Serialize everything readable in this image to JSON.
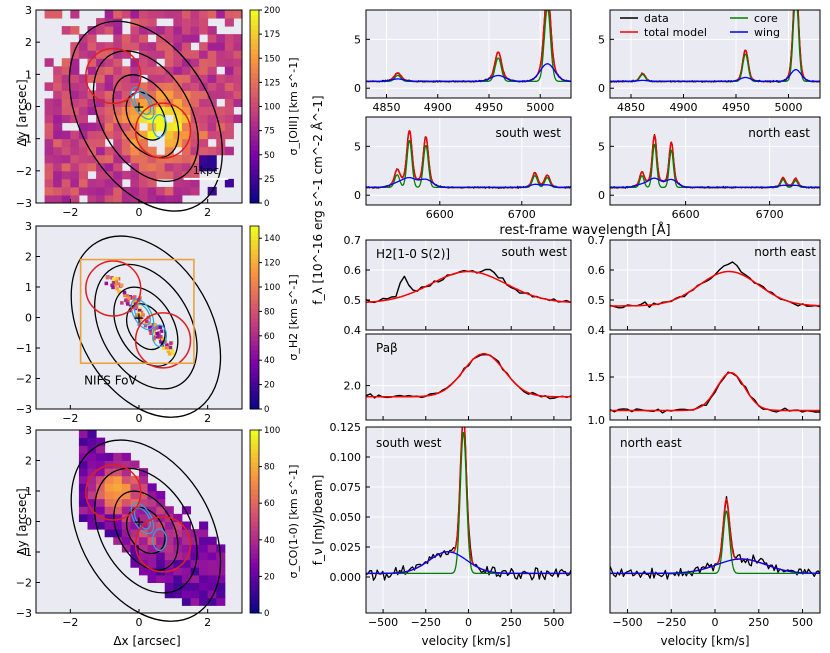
{
  "figure": {
    "map_xlabel": "Δx [arcsec]",
    "map_ylabel": "Δy [arcsec]",
    "spec_xlabel": "rest-frame wavelength [Å]",
    "flux_ylabel": "f_λ [10^-16 erg s^-1 cm^-2 Å^-1]",
    "co_ylabel": "f_ν [mJy/beam]",
    "vel_xlabel": "velocity [km/s]"
  },
  "colors": {
    "data": "#000000",
    "total_model": "#ff0000",
    "core": "#008000",
    "wing": "#0000ff",
    "panel_bg": "#eaeaf2",
    "fov_box": "#e8a33c",
    "contour": "#000000",
    "region_circle": "#e0201e",
    "cyan_contour": "#2aa6e0"
  },
  "legend": [
    {
      "label": "data",
      "color": "#000000"
    },
    {
      "label": "total model",
      "color": "#ff0000"
    },
    {
      "label": "core",
      "color": "#008000"
    },
    {
      "label": "wing",
      "color": "#0000ff"
    }
  ],
  "chart_data": [
    {
      "type": "heatmap",
      "panel": "map_oiii",
      "colorbar_label": "σ_[OIII] [km s^-1]",
      "colorbar_ticks": [
        0,
        25,
        50,
        75,
        100,
        125,
        150,
        175,
        200
      ],
      "clim": [
        0,
        200
      ],
      "colormap": "plasma",
      "xlim": [
        -3,
        3
      ],
      "ylim": [
        -3,
        3
      ],
      "xticks": [
        -2,
        0,
        2
      ],
      "yticks": [
        -3,
        -2,
        -1,
        0,
        1,
        2,
        3
      ],
      "scalebar_label": "1kpc"
    },
    {
      "type": "heatmap",
      "panel": "map_h2",
      "colorbar_label": "σ_H2 [km s^-1]",
      "colorbar_ticks": [
        0,
        20,
        40,
        60,
        80,
        100,
        120,
        140
      ],
      "clim": [
        0,
        150
      ],
      "colormap": "plasma",
      "xlim": [
        -3,
        3
      ],
      "ylim": [
        -3,
        3
      ],
      "xticks": [
        -2,
        0,
        2
      ],
      "yticks": [
        -3,
        -2,
        -1,
        0,
        1,
        2,
        3
      ],
      "fov_label": "NIFS FoV"
    },
    {
      "type": "heatmap",
      "panel": "map_co",
      "colorbar_label": "σ_CO(1-0) [km s^-1]",
      "colorbar_ticks": [
        0,
        20,
        40,
        60,
        80,
        100
      ],
      "clim": [
        0,
        100
      ],
      "colormap": "plasma",
      "xlim": [
        -3,
        3
      ],
      "ylim": [
        -3,
        3
      ],
      "xticks": [
        -2,
        0,
        2
      ],
      "yticks": [
        -3,
        -2,
        -1,
        0,
        1,
        2,
        3
      ]
    },
    {
      "type": "line",
      "panel": "oiii_sw",
      "xlim": [
        4830,
        5030
      ],
      "ylim": [
        -1,
        8
      ],
      "xticks": [
        4850,
        4900,
        4950,
        5000
      ],
      "yticks": [
        0,
        5
      ],
      "continuum": 0.7,
      "lines": [
        {
          "center": 4861,
          "core_amp": 0.6,
          "core_sigma": 3,
          "wing_amp": 0.25,
          "wing_sigma": 6
        },
        {
          "center": 4959,
          "core_amp": 2.4,
          "core_sigma": 3,
          "wing_amp": 0.6,
          "wing_sigma": 7
        },
        {
          "center": 5007,
          "core_amp": 7.5,
          "core_sigma": 3,
          "wing_amp": 1.8,
          "wing_sigma": 7
        }
      ]
    },
    {
      "type": "line",
      "panel": "oiii_ne",
      "xlim": [
        4830,
        5030
      ],
      "ylim": [
        -1,
        8
      ],
      "xticks": [
        4850,
        4900,
        4950,
        5000
      ],
      "yticks": [
        0,
        5
      ],
      "continuum": 0.7,
      "lines": [
        {
          "center": 4861,
          "core_amp": 0.7,
          "core_sigma": 2.5,
          "wing_amp": 0.1,
          "wing_sigma": 5
        },
        {
          "center": 4959,
          "core_amp": 2.8,
          "core_sigma": 2.5,
          "wing_amp": 0.4,
          "wing_sigma": 5
        },
        {
          "center": 5007,
          "core_amp": 8.8,
          "core_sigma": 2.5,
          "wing_amp": 1.2,
          "wing_sigma": 5
        }
      ]
    },
    {
      "type": "line",
      "panel": "ha_sw",
      "label": "south west",
      "xlim": [
        6510,
        6760
      ],
      "ylim": [
        -1,
        8
      ],
      "xticks": [
        6600,
        6700
      ],
      "yticks": [
        0,
        5
      ],
      "continuum": 0.8,
      "lines": [
        {
          "center": 6548,
          "core_amp": 1.3,
          "core_sigma": 3,
          "wing_amp": 0.4,
          "wing_sigma": 8
        },
        {
          "center": 6563,
          "core_amp": 4.8,
          "core_sigma": 3,
          "wing_amp": 0.9,
          "wing_sigma": 8
        },
        {
          "center": 6583,
          "core_amp": 4.3,
          "core_sigma": 3,
          "wing_amp": 0.8,
          "wing_sigma": 8
        },
        {
          "center": 6716,
          "core_amp": 1.2,
          "core_sigma": 3,
          "wing_amp": 0.3,
          "wing_sigma": 6
        },
        {
          "center": 6731,
          "core_amp": 1.0,
          "core_sigma": 3,
          "wing_amp": 0.25,
          "wing_sigma": 6
        }
      ]
    },
    {
      "type": "line",
      "panel": "ha_ne",
      "label": "north east",
      "xlim": [
        6510,
        6760
      ],
      "ylim": [
        -1,
        8
      ],
      "xticks": [
        6600,
        6700
      ],
      "yticks": [
        0,
        5
      ],
      "continuum": 0.8,
      "lines": [
        {
          "center": 6548,
          "core_amp": 1.2,
          "core_sigma": 2.5,
          "wing_amp": 0.3,
          "wing_sigma": 7
        },
        {
          "center": 6563,
          "core_amp": 4.4,
          "core_sigma": 2.5,
          "wing_amp": 0.9,
          "wing_sigma": 7
        },
        {
          "center": 6583,
          "core_amp": 3.8,
          "core_sigma": 2.5,
          "wing_amp": 0.8,
          "wing_sigma": 7
        },
        {
          "center": 6716,
          "core_amp": 0.8,
          "core_sigma": 2.5,
          "wing_amp": 0.2,
          "wing_sigma": 6
        },
        {
          "center": 6731,
          "core_amp": 0.7,
          "core_sigma": 2.5,
          "wing_amp": 0.2,
          "wing_sigma": 6
        }
      ]
    },
    {
      "type": "line",
      "panel": "h2_sw",
      "label": "south west",
      "line_label": "H2[1-0 S(2)]",
      "ylim": [
        0.4,
        0.7
      ],
      "yticks": [
        0.4,
        0.5,
        0.6,
        0.7
      ],
      "model": {
        "continuum": 0.49,
        "amp": 0.105,
        "center": 0,
        "sigma": 220
      },
      "data_extra": [
        {
          "x": -380,
          "amp": 0.065,
          "sigma": 25
        },
        {
          "x": 140,
          "amp": 0.02,
          "sigma": 40
        }
      ]
    },
    {
      "type": "line",
      "panel": "h2_ne",
      "label": "north east",
      "ylim": [
        0.4,
        0.7
      ],
      "yticks": [
        0.4,
        0.5,
        0.6,
        0.7
      ],
      "model": {
        "continuum": 0.48,
        "amp": 0.115,
        "center": 80,
        "sigma": 170
      },
      "data_extra": [
        {
          "x": 95,
          "amp": 0.03,
          "sigma": 40
        }
      ]
    },
    {
      "type": "line",
      "panel": "pab_sw",
      "line_label": "Paβ",
      "ylim": [
        1.6,
        2.6
      ],
      "yticks": [
        2.0
      ],
      "model": {
        "continuum": 1.87,
        "amp": 0.5,
        "center": 90,
        "sigma": 120
      }
    },
    {
      "type": "line",
      "panel": "pab_ne",
      "ylim": [
        1.0,
        2.0
      ],
      "yticks": [
        1.0,
        1.5
      ],
      "model": {
        "continuum": 1.11,
        "amp": 0.44,
        "center": 90,
        "sigma": 80
      }
    },
    {
      "type": "line",
      "panel": "co_sw",
      "label": "south west",
      "xlim": [
        -600,
        600
      ],
      "ylim": [
        -0.03,
        0.125
      ],
      "xticks": [
        -500,
        -250,
        0,
        250,
        500
      ],
      "yticks": [
        0.0,
        0.025,
        0.05,
        0.075,
        0.1,
        0.125
      ],
      "core": {
        "amp": 0.118,
        "center": -30,
        "sigma": 18
      },
      "wing": {
        "amp": 0.018,
        "center": -120,
        "sigma": 110
      },
      "continuum": 0.003
    },
    {
      "type": "line",
      "panel": "co_ne",
      "label": "north east",
      "xlim": [
        -600,
        600
      ],
      "ylim": [
        -0.03,
        0.125
      ],
      "xticks": [
        -500,
        -250,
        0,
        250,
        500
      ],
      "yticks": [
        0.0,
        0.025,
        0.05,
        0.075,
        0.1,
        0.125
      ],
      "core": {
        "amp": 0.052,
        "center": 65,
        "sigma": 18
      },
      "wing": {
        "amp": 0.012,
        "center": 150,
        "sigma": 140
      },
      "continuum": 0.003
    }
  ]
}
